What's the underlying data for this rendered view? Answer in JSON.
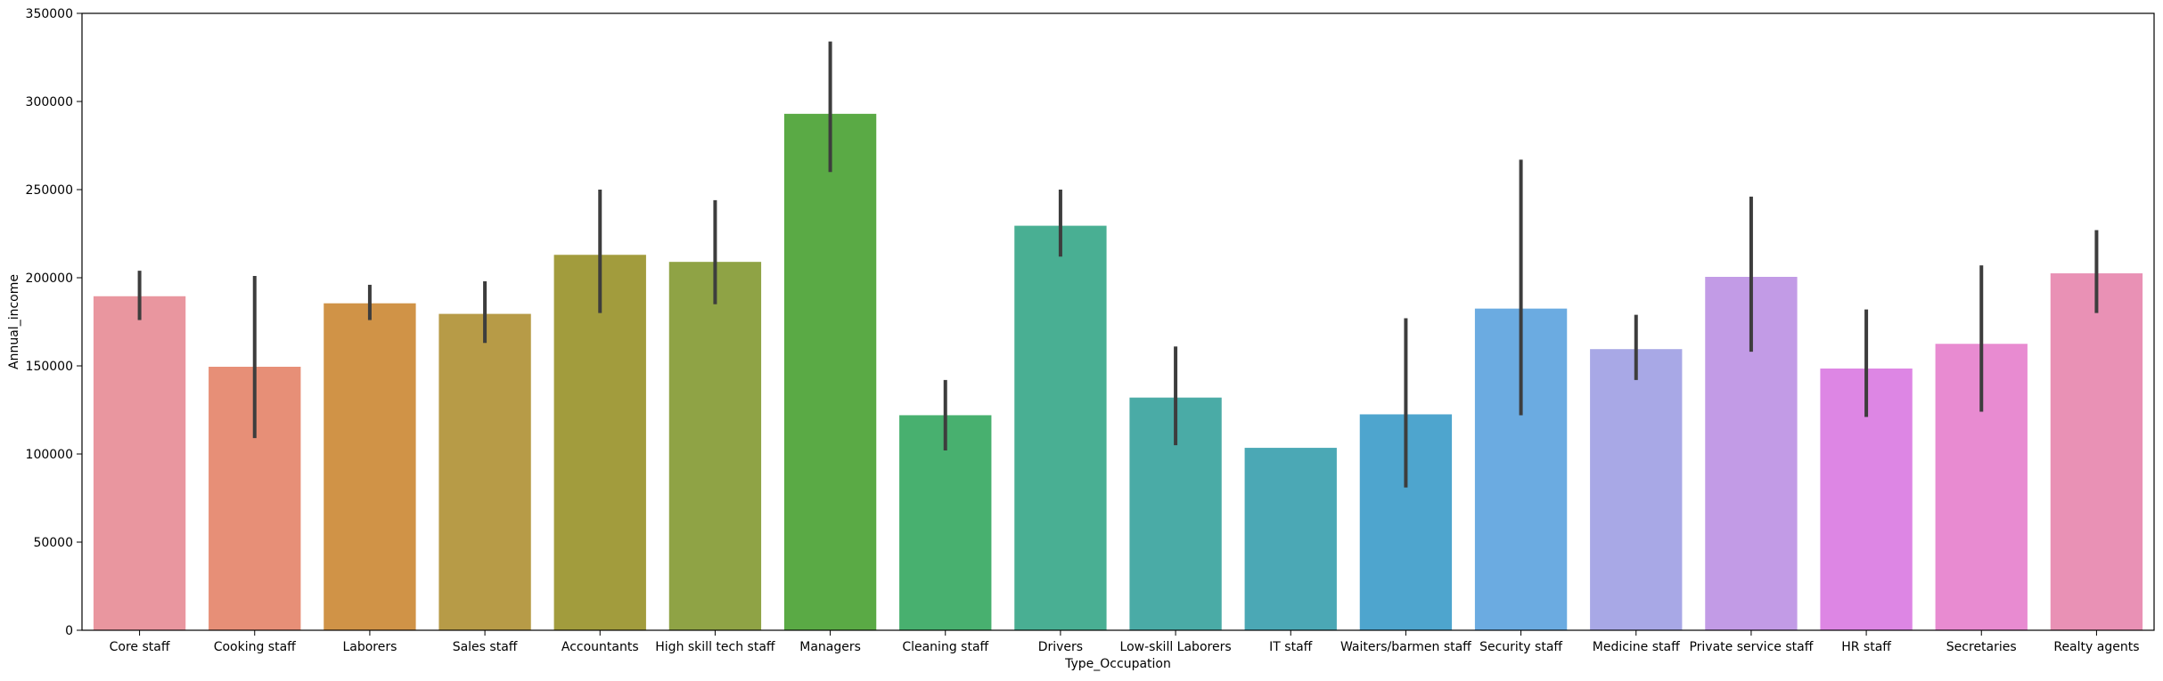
{
  "chart_data": {
    "type": "bar",
    "title": "",
    "xlabel": "Type_Occupation",
    "ylabel": "Annual_income",
    "ylim": [
      0,
      350000
    ],
    "yticks": [
      0,
      50000,
      100000,
      150000,
      200000,
      250000,
      300000,
      350000
    ],
    "ytick_labels": [
      "0",
      "50000",
      "100000",
      "150000",
      "200000",
      "250000",
      "300000",
      "350000"
    ],
    "grid": false,
    "legend": "none",
    "categories": [
      "Core staff",
      "Cooking staff",
      "Laborers",
      "Sales staff",
      "Accountants",
      "High skill tech staff",
      "Managers",
      "Cleaning staff",
      "Drivers",
      "Low-skill Laborers",
      "IT staff",
      "Waiters/barmen staff",
      "Security staff",
      "Medicine staff",
      "Private service staff",
      "HR staff",
      "Secretaries",
      "Realty agents"
    ],
    "values": [
      189500,
      149500,
      185500,
      179500,
      213000,
      209000,
      293000,
      122000,
      229500,
      132000,
      103500,
      122500,
      182500,
      159500,
      200500,
      148500,
      162500,
      202500
    ],
    "ci_low": [
      176000,
      109000,
      176000,
      163000,
      180000,
      185000,
      260000,
      102000,
      212000,
      105000,
      103500,
      81000,
      122000,
      142000,
      158000,
      121000,
      124000,
      180000
    ],
    "ci_high": [
      204000,
      201000,
      196000,
      198000,
      250000,
      244000,
      334000,
      142000,
      250000,
      161000,
      103500,
      177000,
      267000,
      179000,
      246000,
      182000,
      207000,
      227000
    ],
    "colors": [
      "#e9969f",
      "#e78f77",
      "#d09347",
      "#b79b47",
      "#a29c3d",
      "#8fa345",
      "#5aaa45",
      "#48b06f",
      "#49af93",
      "#4aaba6",
      "#4ba8b5",
      "#4ea5ce",
      "#6babe1",
      "#a8a8e6",
      "#c29be6",
      "#dd86e4",
      "#e88bd1",
      "#e991b5"
    ],
    "errorbar_color": "#3d3d3d"
  }
}
